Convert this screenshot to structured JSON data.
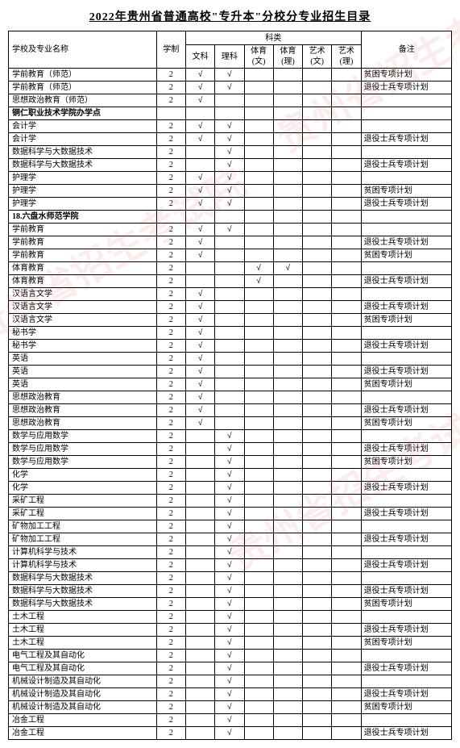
{
  "title": "2022年贵州省普通高校\"专升本\"分校分专业招生目录",
  "headers": {
    "school_major": "学校及专业名称",
    "xuezhi": "学制",
    "category": "科类",
    "wenke": "文科",
    "like": "理科",
    "tiyu_wen": "体育(文)",
    "tiyu_li": "体育(理)",
    "yishu_wen": "艺术(文)",
    "yishu_li": "艺术(理)",
    "beizhu": "备注"
  },
  "watermark": "贵州省招生考试院",
  "rows": [
    {
      "name": "学前教育（师范）",
      "xz": "2",
      "wk": "√",
      "lk": "√",
      "tw": "",
      "tl": "",
      "yw": "",
      "yl": "",
      "note": "贫困专项计划",
      "bold": false
    },
    {
      "name": "学前教育（师范）",
      "xz": "2",
      "wk": "√",
      "lk": "√",
      "tw": "",
      "tl": "",
      "yw": "",
      "yl": "",
      "note": "退役士兵专项计划",
      "bold": false
    },
    {
      "name": "思想政治教育（师范）",
      "xz": "2",
      "wk": "√",
      "lk": "",
      "tw": "",
      "tl": "",
      "yw": "",
      "yl": "",
      "note": "",
      "bold": false
    },
    {
      "name": "铜仁职业技术学院办学点",
      "xz": "",
      "wk": "",
      "lk": "",
      "tw": "",
      "tl": "",
      "yw": "",
      "yl": "",
      "note": "",
      "bold": true
    },
    {
      "name": "会计学",
      "xz": "2",
      "wk": "√",
      "lk": "√",
      "tw": "",
      "tl": "",
      "yw": "",
      "yl": "",
      "note": "",
      "bold": false
    },
    {
      "name": "会计学",
      "xz": "2",
      "wk": "√",
      "lk": "√",
      "tw": "",
      "tl": "",
      "yw": "",
      "yl": "",
      "note": "退役士兵专项计划",
      "bold": false
    },
    {
      "name": "数据科学与大数据技术",
      "xz": "2",
      "wk": "",
      "lk": "√",
      "tw": "",
      "tl": "",
      "yw": "",
      "yl": "",
      "note": "",
      "bold": false
    },
    {
      "name": "数据科学与大数据技术",
      "xz": "2",
      "wk": "",
      "lk": "√",
      "tw": "",
      "tl": "",
      "yw": "",
      "yl": "",
      "note": "退役士兵专项计划",
      "bold": false
    },
    {
      "name": "护理学",
      "xz": "2",
      "wk": "√",
      "lk": "√",
      "tw": "",
      "tl": "",
      "yw": "",
      "yl": "",
      "note": "",
      "bold": false
    },
    {
      "name": "护理学",
      "xz": "2",
      "wk": "√",
      "lk": "√",
      "tw": "",
      "tl": "",
      "yw": "",
      "yl": "",
      "note": "贫困专项计划",
      "bold": false
    },
    {
      "name": "护理学",
      "xz": "2",
      "wk": "√",
      "lk": "√",
      "tw": "",
      "tl": "",
      "yw": "",
      "yl": "",
      "note": "退役士兵专项计划",
      "bold": false
    },
    {
      "name": "18.六盘水师范学院",
      "xz": "",
      "wk": "",
      "lk": "",
      "tw": "",
      "tl": "",
      "yw": "",
      "yl": "",
      "note": "",
      "bold": true
    },
    {
      "name": "学前教育",
      "xz": "2",
      "wk": "√",
      "lk": "√",
      "tw": "",
      "tl": "",
      "yw": "",
      "yl": "",
      "note": "",
      "bold": false
    },
    {
      "name": "学前教育",
      "xz": "2",
      "wk": "√",
      "lk": "",
      "tw": "",
      "tl": "",
      "yw": "",
      "yl": "",
      "note": "退役士兵专项计划",
      "bold": false
    },
    {
      "name": "学前教育",
      "xz": "2",
      "wk": "√",
      "lk": "",
      "tw": "",
      "tl": "",
      "yw": "",
      "yl": "",
      "note": "贫困专项计划",
      "bold": false
    },
    {
      "name": "体育教育",
      "xz": "2",
      "wk": "",
      "lk": "",
      "tw": "√",
      "tl": "√",
      "yw": "",
      "yl": "",
      "note": "",
      "bold": false
    },
    {
      "name": "体育教育",
      "xz": "2",
      "wk": "",
      "lk": "",
      "tw": "√",
      "tl": "",
      "yw": "",
      "yl": "",
      "note": "退役士兵专项计划",
      "bold": false
    },
    {
      "name": "汉语言文学",
      "xz": "2",
      "wk": "√",
      "lk": "",
      "tw": "",
      "tl": "",
      "yw": "",
      "yl": "",
      "note": "",
      "bold": false
    },
    {
      "name": "汉语言文学",
      "xz": "2",
      "wk": "√",
      "lk": "",
      "tw": "",
      "tl": "",
      "yw": "",
      "yl": "",
      "note": "退役士兵专项计划",
      "bold": false
    },
    {
      "name": "汉语言文学",
      "xz": "2",
      "wk": "√",
      "lk": "",
      "tw": "",
      "tl": "",
      "yw": "",
      "yl": "",
      "note": "贫困专项计划",
      "bold": false
    },
    {
      "name": "秘书学",
      "xz": "2",
      "wk": "√",
      "lk": "",
      "tw": "",
      "tl": "",
      "yw": "",
      "yl": "",
      "note": "",
      "bold": false
    },
    {
      "name": "秘书学",
      "xz": "2",
      "wk": "√",
      "lk": "",
      "tw": "",
      "tl": "",
      "yw": "",
      "yl": "",
      "note": "退役士兵专项计划",
      "bold": false
    },
    {
      "name": "英语",
      "xz": "2",
      "wk": "√",
      "lk": "",
      "tw": "",
      "tl": "",
      "yw": "",
      "yl": "",
      "note": "",
      "bold": false
    },
    {
      "name": "英语",
      "xz": "2",
      "wk": "√",
      "lk": "",
      "tw": "",
      "tl": "",
      "yw": "",
      "yl": "",
      "note": "退役士兵专项计划",
      "bold": false
    },
    {
      "name": "英语",
      "xz": "2",
      "wk": "√",
      "lk": "",
      "tw": "",
      "tl": "",
      "yw": "",
      "yl": "",
      "note": "贫困专项计划",
      "bold": false
    },
    {
      "name": "思想政治教育",
      "xz": "2",
      "wk": "√",
      "lk": "",
      "tw": "",
      "tl": "",
      "yw": "",
      "yl": "",
      "note": "",
      "bold": false
    },
    {
      "name": "思想政治教育",
      "xz": "2",
      "wk": "√",
      "lk": "",
      "tw": "",
      "tl": "",
      "yw": "",
      "yl": "",
      "note": "退役士兵专项计划",
      "bold": false
    },
    {
      "name": "思想政治教育",
      "xz": "2",
      "wk": "√",
      "lk": "",
      "tw": "",
      "tl": "",
      "yw": "",
      "yl": "",
      "note": "贫困专项计划",
      "bold": false
    },
    {
      "name": "数学与应用数学",
      "xz": "2",
      "wk": "",
      "lk": "√",
      "tw": "",
      "tl": "",
      "yw": "",
      "yl": "",
      "note": "",
      "bold": false
    },
    {
      "name": "数学与应用数学",
      "xz": "2",
      "wk": "",
      "lk": "√",
      "tw": "",
      "tl": "",
      "yw": "",
      "yl": "",
      "note": "退役士兵专项计划",
      "bold": false
    },
    {
      "name": "数学与应用数学",
      "xz": "2",
      "wk": "",
      "lk": "√",
      "tw": "",
      "tl": "",
      "yw": "",
      "yl": "",
      "note": "贫困专项计划",
      "bold": false
    },
    {
      "name": "化学",
      "xz": "2",
      "wk": "",
      "lk": "√",
      "tw": "",
      "tl": "",
      "yw": "",
      "yl": "",
      "note": "",
      "bold": false
    },
    {
      "name": "化学",
      "xz": "2",
      "wk": "",
      "lk": "√",
      "tw": "",
      "tl": "",
      "yw": "",
      "yl": "",
      "note": "退役士兵专项计划",
      "bold": false
    },
    {
      "name": "采矿工程",
      "xz": "2",
      "wk": "",
      "lk": "√",
      "tw": "",
      "tl": "",
      "yw": "",
      "yl": "",
      "note": "",
      "bold": false
    },
    {
      "name": "采矿工程",
      "xz": "2",
      "wk": "",
      "lk": "√",
      "tw": "",
      "tl": "",
      "yw": "",
      "yl": "",
      "note": "退役士兵专项计划",
      "bold": false
    },
    {
      "name": "矿物加工工程",
      "xz": "2",
      "wk": "",
      "lk": "√",
      "tw": "",
      "tl": "",
      "yw": "",
      "yl": "",
      "note": "",
      "bold": false
    },
    {
      "name": "矿物加工工程",
      "xz": "2",
      "wk": "",
      "lk": "√",
      "tw": "",
      "tl": "",
      "yw": "",
      "yl": "",
      "note": "退役士兵专项计划",
      "bold": false
    },
    {
      "name": "计算机科学与技术",
      "xz": "2",
      "wk": "",
      "lk": "√",
      "tw": "",
      "tl": "",
      "yw": "",
      "yl": "",
      "note": "",
      "bold": false
    },
    {
      "name": "计算机科学与技术",
      "xz": "2",
      "wk": "",
      "lk": "√",
      "tw": "",
      "tl": "",
      "yw": "",
      "yl": "",
      "note": "退役士兵专项计划",
      "bold": false
    },
    {
      "name": "数据科学与大数据技术",
      "xz": "2",
      "wk": "",
      "lk": "√",
      "tw": "",
      "tl": "",
      "yw": "",
      "yl": "",
      "note": "",
      "bold": false
    },
    {
      "name": "数据科学与大数据技术",
      "xz": "2",
      "wk": "",
      "lk": "√",
      "tw": "",
      "tl": "",
      "yw": "",
      "yl": "",
      "note": "退役士兵专项计划",
      "bold": false
    },
    {
      "name": "数据科学与大数据技术",
      "xz": "2",
      "wk": "",
      "lk": "√",
      "tw": "",
      "tl": "",
      "yw": "",
      "yl": "",
      "note": "贫困专项计划",
      "bold": false
    },
    {
      "name": "土木工程",
      "xz": "2",
      "wk": "",
      "lk": "√",
      "tw": "",
      "tl": "",
      "yw": "",
      "yl": "",
      "note": "",
      "bold": false
    },
    {
      "name": "土木工程",
      "xz": "2",
      "wk": "",
      "lk": "√",
      "tw": "",
      "tl": "",
      "yw": "",
      "yl": "",
      "note": "退役士兵专项计划",
      "bold": false
    },
    {
      "name": "土木工程",
      "xz": "2",
      "wk": "",
      "lk": "√",
      "tw": "",
      "tl": "",
      "yw": "",
      "yl": "",
      "note": "贫困专项计划",
      "bold": false
    },
    {
      "name": "电气工程及其自动化",
      "xz": "2",
      "wk": "",
      "lk": "√",
      "tw": "",
      "tl": "",
      "yw": "",
      "yl": "",
      "note": "",
      "bold": false
    },
    {
      "name": "电气工程及其自动化",
      "xz": "2",
      "wk": "",
      "lk": "√",
      "tw": "",
      "tl": "",
      "yw": "",
      "yl": "",
      "note": "退役士兵专项计划",
      "bold": false
    },
    {
      "name": "机械设计制造及其自动化",
      "xz": "2",
      "wk": "",
      "lk": "√",
      "tw": "",
      "tl": "",
      "yw": "",
      "yl": "",
      "note": "",
      "bold": false
    },
    {
      "name": "机械设计制造及其自动化",
      "xz": "2",
      "wk": "",
      "lk": "√",
      "tw": "",
      "tl": "",
      "yw": "",
      "yl": "",
      "note": "退役士兵专项计划",
      "bold": false
    },
    {
      "name": "机械设计制造及其自动化",
      "xz": "2",
      "wk": "",
      "lk": "√",
      "tw": "",
      "tl": "",
      "yw": "",
      "yl": "",
      "note": "贫困专项计划",
      "bold": false
    },
    {
      "name": "冶金工程",
      "xz": "2",
      "wk": "",
      "lk": "√",
      "tw": "",
      "tl": "",
      "yw": "",
      "yl": "",
      "note": "",
      "bold": false
    },
    {
      "name": "冶金工程",
      "xz": "2",
      "wk": "",
      "lk": "√",
      "tw": "",
      "tl": "",
      "yw": "",
      "yl": "",
      "note": "退役士兵专项计划",
      "bold": false
    }
  ]
}
